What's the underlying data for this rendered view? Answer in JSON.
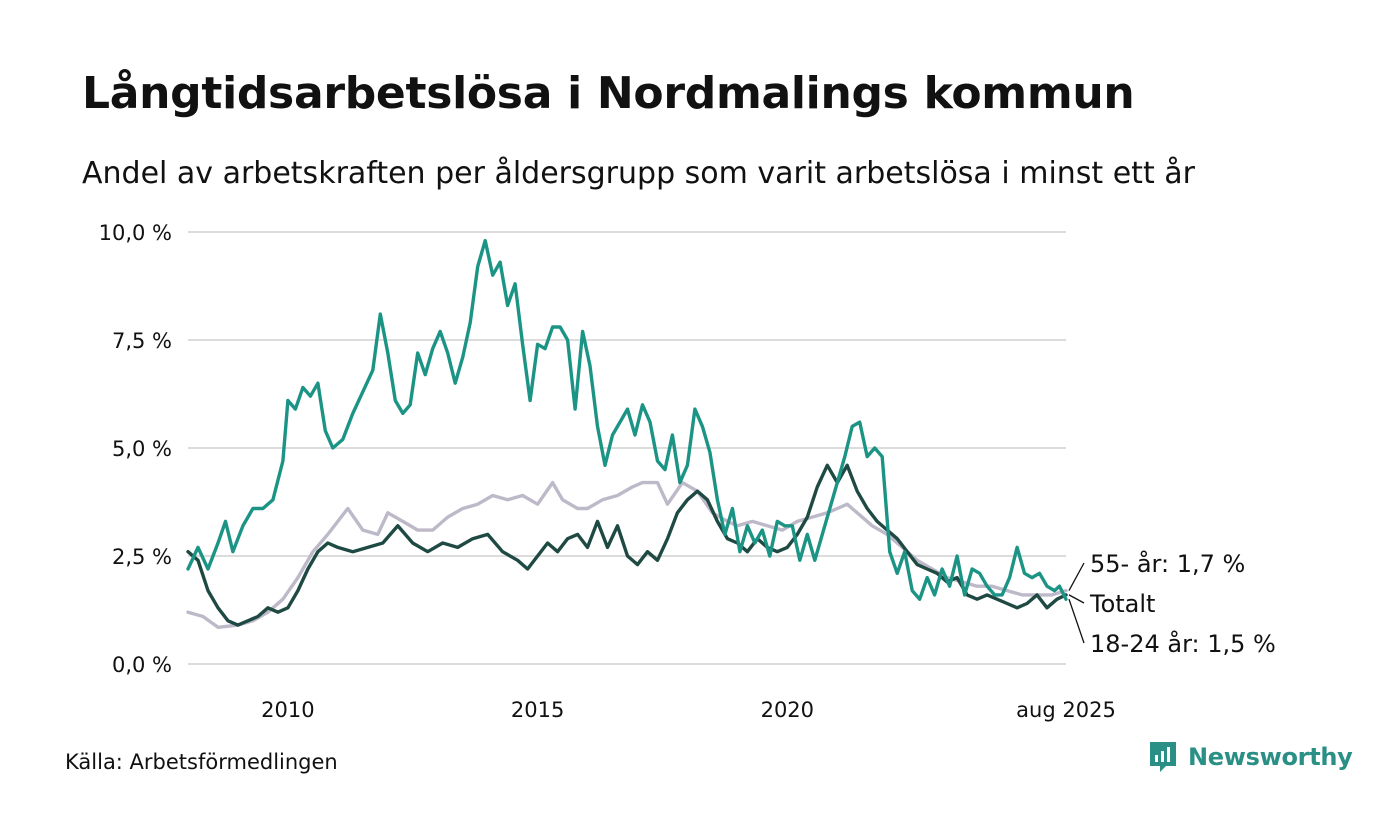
{
  "header": {
    "title": "Långtidsarbetslösa i Nordmalings kommun",
    "subtitle": "Andel av arbetskraften per åldersgrupp som varit arbetslösa i minst ett år"
  },
  "footer": {
    "source": "Källa: Arbetsförmedlingen",
    "brand": "Newsworthy"
  },
  "chart_data": {
    "type": "line",
    "title": "Långtidsarbetslösa i Nordmalings kommun",
    "subtitle": "Andel av arbetskraften per åldersgrupp som varit arbetslösa i minst ett år",
    "xlim": [
      2008.0,
      2025.58
    ],
    "ylim": [
      0,
      10
    ],
    "y_ticks": [
      0,
      2.5,
      5,
      7.5,
      10
    ],
    "y_tick_labels": [
      "0,0 %",
      "2,5 %",
      "5,0 %",
      "7,5 %",
      "10,0 %"
    ],
    "x_ticks": [
      2010,
      2015,
      2020,
      2025.58
    ],
    "x_tick_labels": [
      "2010",
      "2015",
      "2020",
      "aug 2025"
    ],
    "grid": true,
    "legend": "direct labels at right end of lines",
    "series": [
      {
        "name": "55- år",
        "end_label": "55- år: 1,7 %",
        "color": "#bdb9c9",
        "points": [
          [
            2008.0,
            1.2
          ],
          [
            2008.3,
            1.1
          ],
          [
            2008.6,
            0.85
          ],
          [
            2009.0,
            0.9
          ],
          [
            2009.3,
            1.0
          ],
          [
            2009.6,
            1.2
          ],
          [
            2009.9,
            1.5
          ],
          [
            2010.2,
            2.0
          ],
          [
            2010.5,
            2.6
          ],
          [
            2010.8,
            3.0
          ],
          [
            2011.0,
            3.3
          ],
          [
            2011.2,
            3.6
          ],
          [
            2011.5,
            3.1
          ],
          [
            2011.8,
            3.0
          ],
          [
            2012.0,
            3.5
          ],
          [
            2012.3,
            3.3
          ],
          [
            2012.6,
            3.1
          ],
          [
            2012.9,
            3.1
          ],
          [
            2013.2,
            3.4
          ],
          [
            2013.5,
            3.6
          ],
          [
            2013.8,
            3.7
          ],
          [
            2014.1,
            3.9
          ],
          [
            2014.4,
            3.8
          ],
          [
            2014.7,
            3.9
          ],
          [
            2015.0,
            3.7
          ],
          [
            2015.3,
            4.2
          ],
          [
            2015.5,
            3.8
          ],
          [
            2015.8,
            3.6
          ],
          [
            2016.0,
            3.6
          ],
          [
            2016.3,
            3.8
          ],
          [
            2016.6,
            3.9
          ],
          [
            2016.9,
            4.1
          ],
          [
            2017.1,
            4.2
          ],
          [
            2017.4,
            4.2
          ],
          [
            2017.6,
            3.7
          ],
          [
            2017.9,
            4.2
          ],
          [
            2018.2,
            4.0
          ],
          [
            2018.5,
            3.5
          ],
          [
            2018.8,
            3.3
          ],
          [
            2019.0,
            3.2
          ],
          [
            2019.3,
            3.3
          ],
          [
            2019.6,
            3.2
          ],
          [
            2019.9,
            3.1
          ],
          [
            2020.2,
            3.3
          ],
          [
            2020.5,
            3.4
          ],
          [
            2020.8,
            3.5
          ],
          [
            2021.0,
            3.6
          ],
          [
            2021.2,
            3.7
          ],
          [
            2021.4,
            3.5
          ],
          [
            2021.7,
            3.2
          ],
          [
            2022.0,
            3.0
          ],
          [
            2022.3,
            2.7
          ],
          [
            2022.6,
            2.4
          ],
          [
            2022.9,
            2.2
          ],
          [
            2023.2,
            2.0
          ],
          [
            2023.5,
            1.9
          ],
          [
            2023.8,
            1.8
          ],
          [
            2024.1,
            1.8
          ],
          [
            2024.4,
            1.7
          ],
          [
            2024.7,
            1.6
          ],
          [
            2025.0,
            1.6
          ],
          [
            2025.3,
            1.6
          ],
          [
            2025.58,
            1.7
          ]
        ]
      },
      {
        "name": "Totalt",
        "end_label": "Totalt",
        "color": "#1f4a44",
        "points": [
          [
            2008.0,
            2.6
          ],
          [
            2008.2,
            2.4
          ],
          [
            2008.4,
            1.7
          ],
          [
            2008.6,
            1.3
          ],
          [
            2008.8,
            1.0
          ],
          [
            2009.0,
            0.9
          ],
          [
            2009.2,
            1.0
          ],
          [
            2009.4,
            1.1
          ],
          [
            2009.6,
            1.3
          ],
          [
            2009.8,
            1.2
          ],
          [
            2010.0,
            1.3
          ],
          [
            2010.2,
            1.7
          ],
          [
            2010.4,
            2.2
          ],
          [
            2010.6,
            2.6
          ],
          [
            2010.8,
            2.8
          ],
          [
            2011.0,
            2.7
          ],
          [
            2011.3,
            2.6
          ],
          [
            2011.6,
            2.7
          ],
          [
            2011.9,
            2.8
          ],
          [
            2012.2,
            3.2
          ],
          [
            2012.5,
            2.8
          ],
          [
            2012.8,
            2.6
          ],
          [
            2013.1,
            2.8
          ],
          [
            2013.4,
            2.7
          ],
          [
            2013.7,
            2.9
          ],
          [
            2014.0,
            3.0
          ],
          [
            2014.3,
            2.6
          ],
          [
            2014.6,
            2.4
          ],
          [
            2014.8,
            2.2
          ],
          [
            2015.0,
            2.5
          ],
          [
            2015.2,
            2.8
          ],
          [
            2015.4,
            2.6
          ],
          [
            2015.6,
            2.9
          ],
          [
            2015.8,
            3.0
          ],
          [
            2016.0,
            2.7
          ],
          [
            2016.2,
            3.3
          ],
          [
            2016.4,
            2.7
          ],
          [
            2016.6,
            3.2
          ],
          [
            2016.8,
            2.5
          ],
          [
            2017.0,
            2.3
          ],
          [
            2017.2,
            2.6
          ],
          [
            2017.4,
            2.4
          ],
          [
            2017.6,
            2.9
          ],
          [
            2017.8,
            3.5
          ],
          [
            2018.0,
            3.8
          ],
          [
            2018.2,
            4.0
          ],
          [
            2018.4,
            3.8
          ],
          [
            2018.6,
            3.3
          ],
          [
            2018.8,
            2.9
          ],
          [
            2019.0,
            2.8
          ],
          [
            2019.2,
            2.6
          ],
          [
            2019.4,
            2.9
          ],
          [
            2019.6,
            2.7
          ],
          [
            2019.8,
            2.6
          ],
          [
            2020.0,
            2.7
          ],
          [
            2020.2,
            3.0
          ],
          [
            2020.4,
            3.4
          ],
          [
            2020.6,
            4.1
          ],
          [
            2020.8,
            4.6
          ],
          [
            2021.0,
            4.2
          ],
          [
            2021.2,
            4.6
          ],
          [
            2021.4,
            4.0
          ],
          [
            2021.6,
            3.6
          ],
          [
            2021.8,
            3.3
          ],
          [
            2022.0,
            3.1
          ],
          [
            2022.2,
            2.9
          ],
          [
            2022.4,
            2.6
          ],
          [
            2022.6,
            2.3
          ],
          [
            2022.8,
            2.2
          ],
          [
            2023.0,
            2.1
          ],
          [
            2023.2,
            1.9
          ],
          [
            2023.4,
            2.0
          ],
          [
            2023.6,
            1.6
          ],
          [
            2023.8,
            1.5
          ],
          [
            2024.0,
            1.6
          ],
          [
            2024.2,
            1.5
          ],
          [
            2024.4,
            1.4
          ],
          [
            2024.6,
            1.3
          ],
          [
            2024.8,
            1.4
          ],
          [
            2025.0,
            1.6
          ],
          [
            2025.2,
            1.3
          ],
          [
            2025.4,
            1.5
          ],
          [
            2025.58,
            1.6
          ]
        ]
      },
      {
        "name": "18-24 år",
        "end_label": "18-24 år: 1,5 %",
        "color": "#1c9485",
        "points": [
          [
            2008.0,
            2.2
          ],
          [
            2008.2,
            2.7
          ],
          [
            2008.4,
            2.2
          ],
          [
            2008.6,
            2.8
          ],
          [
            2008.75,
            3.3
          ],
          [
            2008.9,
            2.6
          ],
          [
            2009.1,
            3.2
          ],
          [
            2009.3,
            3.6
          ],
          [
            2009.5,
            3.6
          ],
          [
            2009.7,
            3.8
          ],
          [
            2009.9,
            4.7
          ],
          [
            2010.0,
            6.1
          ],
          [
            2010.15,
            5.9
          ],
          [
            2010.3,
            6.4
          ],
          [
            2010.45,
            6.2
          ],
          [
            2010.6,
            6.5
          ],
          [
            2010.75,
            5.4
          ],
          [
            2010.9,
            5.0
          ],
          [
            2011.1,
            5.2
          ],
          [
            2011.3,
            5.8
          ],
          [
            2011.5,
            6.3
          ],
          [
            2011.7,
            6.8
          ],
          [
            2011.85,
            8.1
          ],
          [
            2012.0,
            7.2
          ],
          [
            2012.15,
            6.1
          ],
          [
            2012.3,
            5.8
          ],
          [
            2012.45,
            6.0
          ],
          [
            2012.6,
            7.2
          ],
          [
            2012.75,
            6.7
          ],
          [
            2012.9,
            7.3
          ],
          [
            2013.05,
            7.7
          ],
          [
            2013.2,
            7.2
          ],
          [
            2013.35,
            6.5
          ],
          [
            2013.5,
            7.1
          ],
          [
            2013.65,
            7.9
          ],
          [
            2013.8,
            9.2
          ],
          [
            2013.95,
            9.8
          ],
          [
            2014.1,
            9.0
          ],
          [
            2014.25,
            9.3
          ],
          [
            2014.4,
            8.3
          ],
          [
            2014.55,
            8.8
          ],
          [
            2014.7,
            7.4
          ],
          [
            2014.85,
            6.1
          ],
          [
            2015.0,
            7.4
          ],
          [
            2015.15,
            7.3
          ],
          [
            2015.3,
            7.8
          ],
          [
            2015.45,
            7.8
          ],
          [
            2015.6,
            7.5
          ],
          [
            2015.75,
            5.9
          ],
          [
            2015.9,
            7.7
          ],
          [
            2016.05,
            6.9
          ],
          [
            2016.2,
            5.5
          ],
          [
            2016.35,
            4.6
          ],
          [
            2016.5,
            5.3
          ],
          [
            2016.65,
            5.6
          ],
          [
            2016.8,
            5.9
          ],
          [
            2016.95,
            5.3
          ],
          [
            2017.1,
            6.0
          ],
          [
            2017.25,
            5.6
          ],
          [
            2017.4,
            4.7
          ],
          [
            2017.55,
            4.5
          ],
          [
            2017.7,
            5.3
          ],
          [
            2017.85,
            4.2
          ],
          [
            2018.0,
            4.6
          ],
          [
            2018.15,
            5.9
          ],
          [
            2018.3,
            5.5
          ],
          [
            2018.45,
            4.9
          ],
          [
            2018.6,
            3.8
          ],
          [
            2018.75,
            3.0
          ],
          [
            2018.9,
            3.6
          ],
          [
            2019.05,
            2.6
          ],
          [
            2019.2,
            3.2
          ],
          [
            2019.35,
            2.8
          ],
          [
            2019.5,
            3.1
          ],
          [
            2019.65,
            2.5
          ],
          [
            2019.8,
            3.3
          ],
          [
            2019.95,
            3.2
          ],
          [
            2020.1,
            3.2
          ],
          [
            2020.25,
            2.4
          ],
          [
            2020.4,
            3.0
          ],
          [
            2020.55,
            2.4
          ],
          [
            2020.7,
            3.0
          ],
          [
            2020.85,
            3.6
          ],
          [
            2021.0,
            4.2
          ],
          [
            2021.15,
            4.8
          ],
          [
            2021.3,
            5.5
          ],
          [
            2021.45,
            5.6
          ],
          [
            2021.6,
            4.8
          ],
          [
            2021.75,
            5.0
          ],
          [
            2021.9,
            4.8
          ],
          [
            2022.05,
            2.6
          ],
          [
            2022.2,
            2.1
          ],
          [
            2022.35,
            2.6
          ],
          [
            2022.5,
            1.7
          ],
          [
            2022.65,
            1.5
          ],
          [
            2022.8,
            2.0
          ],
          [
            2022.95,
            1.6
          ],
          [
            2023.1,
            2.2
          ],
          [
            2023.25,
            1.8
          ],
          [
            2023.4,
            2.5
          ],
          [
            2023.55,
            1.6
          ],
          [
            2023.7,
            2.2
          ],
          [
            2023.85,
            2.1
          ],
          [
            2024.0,
            1.8
          ],
          [
            2024.15,
            1.6
          ],
          [
            2024.3,
            1.6
          ],
          [
            2024.45,
            2.0
          ],
          [
            2024.6,
            2.7
          ],
          [
            2024.75,
            2.1
          ],
          [
            2024.9,
            2.0
          ],
          [
            2025.05,
            2.1
          ],
          [
            2025.2,
            1.8
          ],
          [
            2025.35,
            1.7
          ],
          [
            2025.45,
            1.8
          ],
          [
            2025.58,
            1.5
          ]
        ]
      }
    ]
  }
}
